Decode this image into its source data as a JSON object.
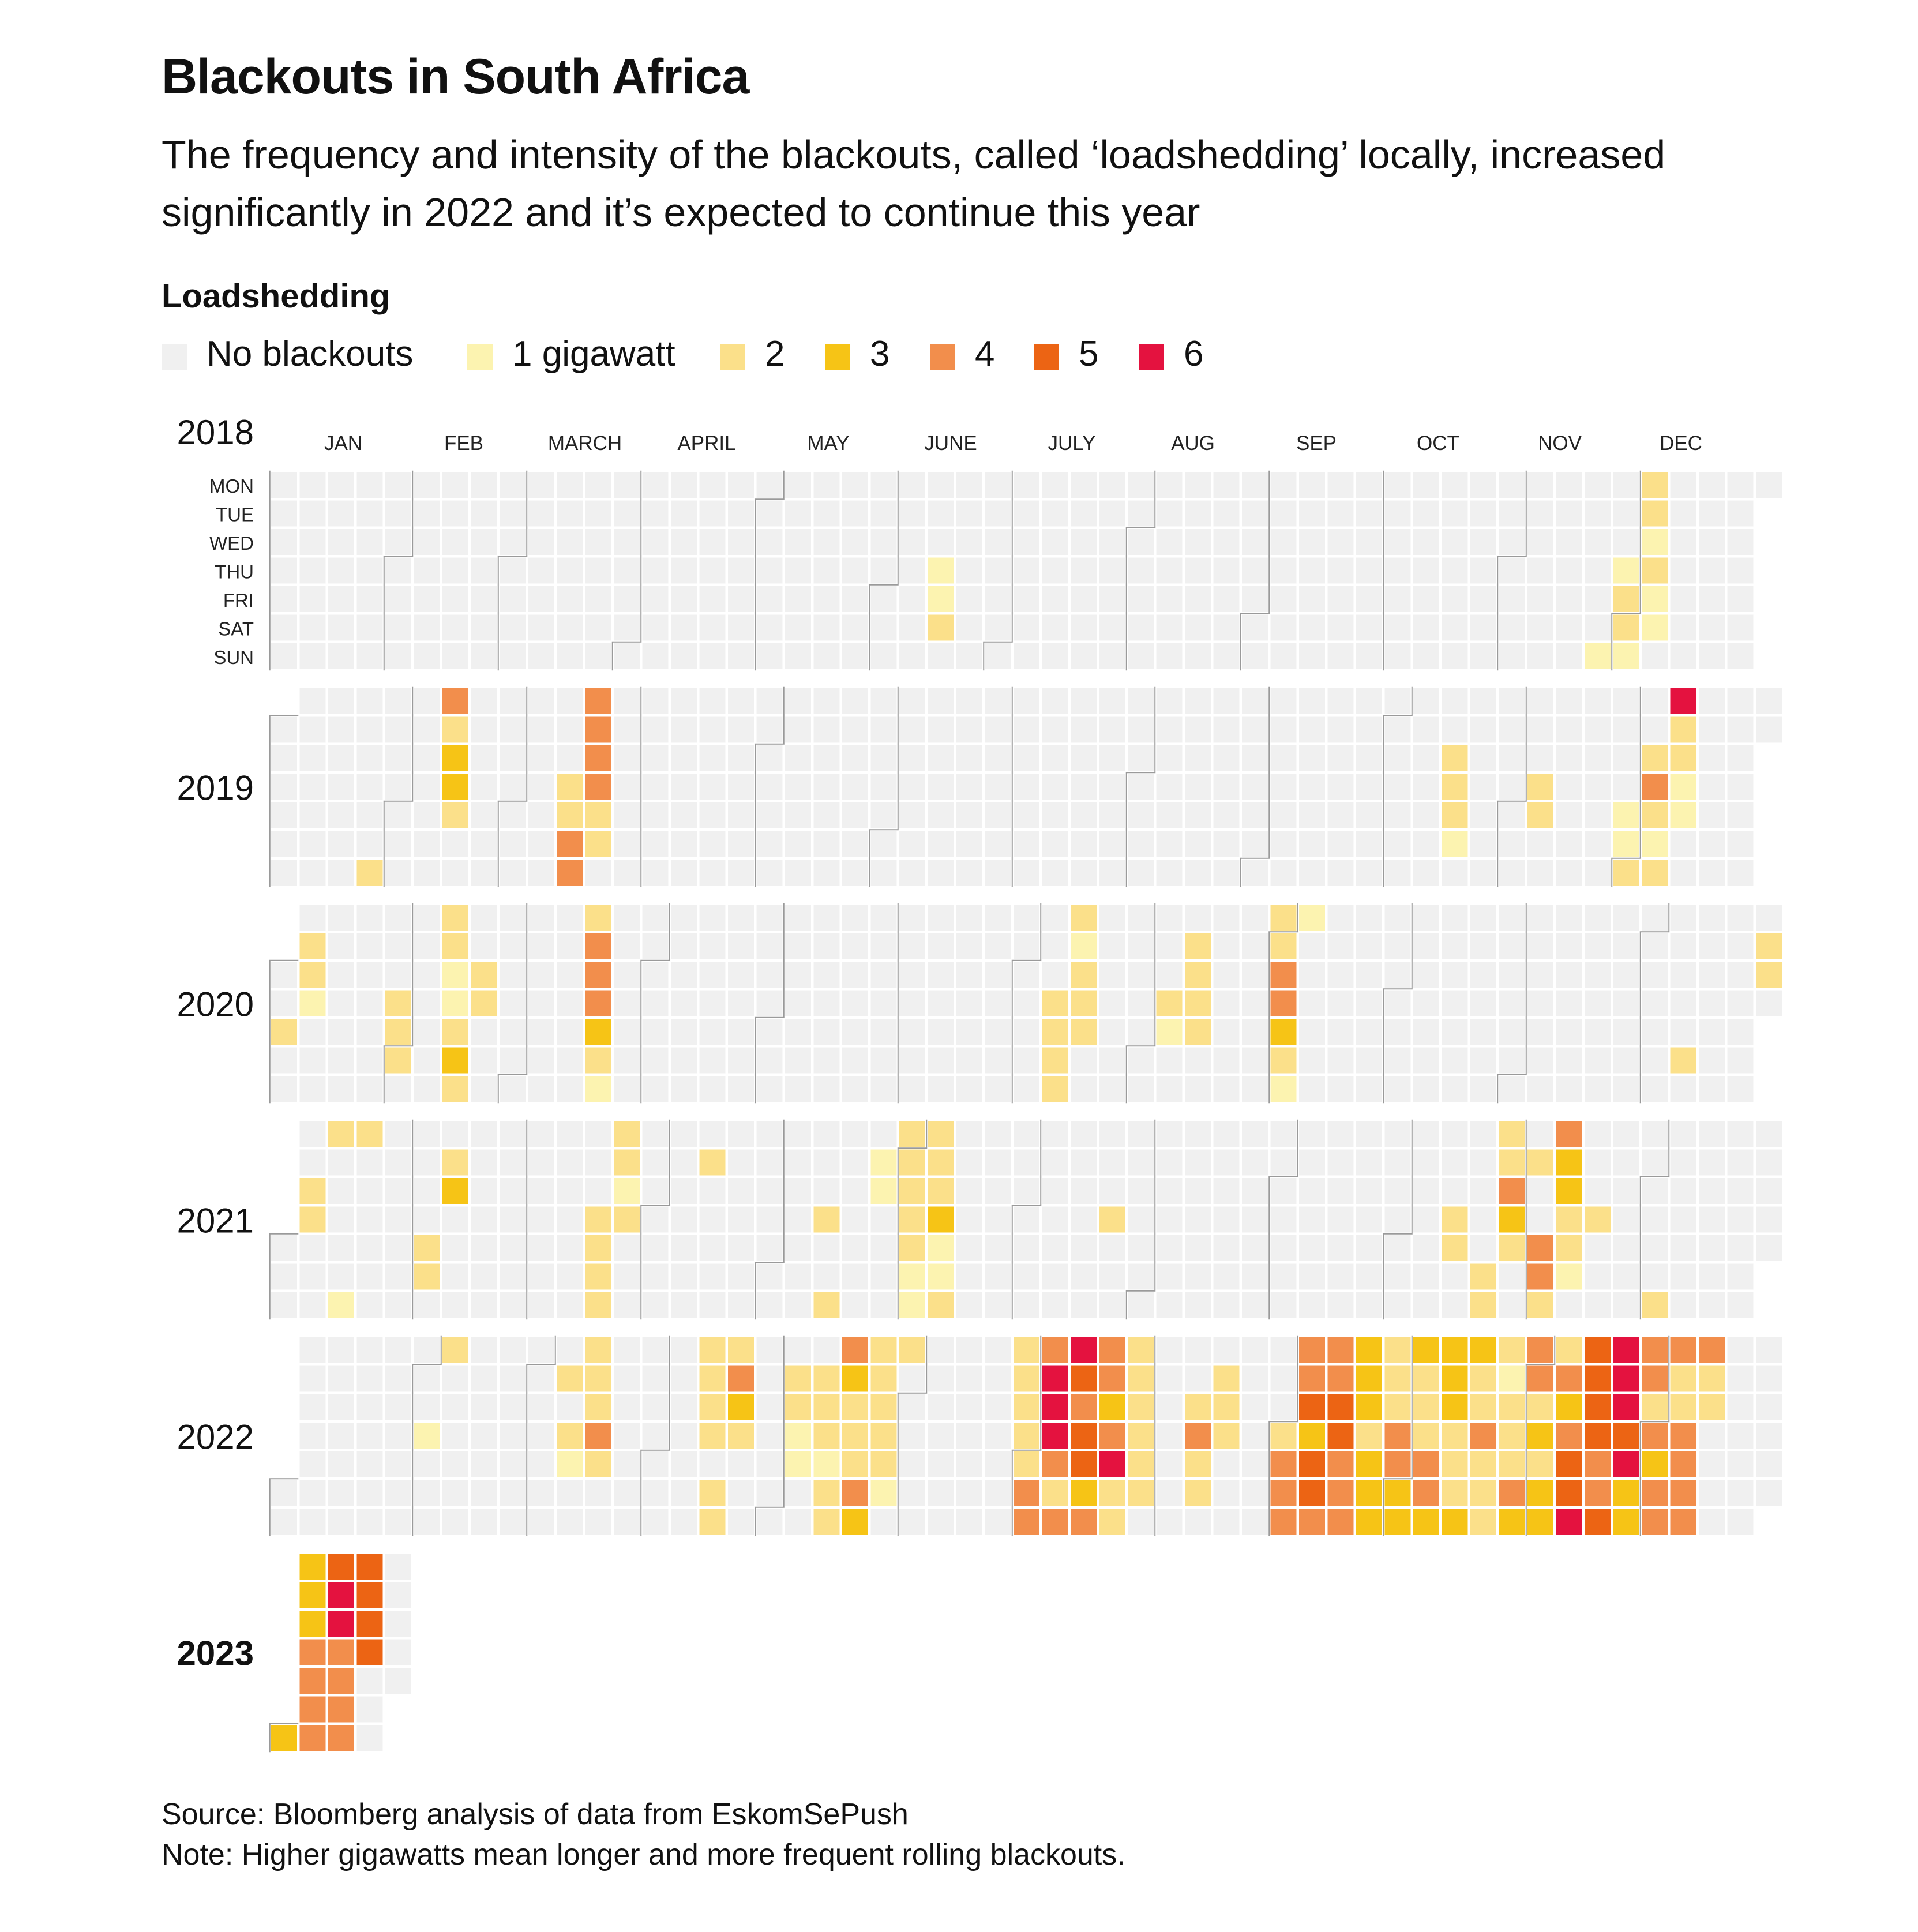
{
  "title": "Blackouts in South Africa",
  "subtitle": "The frequency and intensity of the blackouts, called ‘loadshedding’ locally, increased significantly in 2022 and it’s expected to continue this year",
  "source": "Source: Bloomberg analysis of data from EskomSePush",
  "note": "Note: Higher gigawatts mean longer and more frequent rolling blackouts.",
  "chart_data": {
    "type": "heatmap",
    "legend_title": "Loadshedding",
    "legend": [
      {
        "level": 0,
        "label": "No blackouts"
      },
      {
        "level": 1,
        "label": "1 gigawatt"
      },
      {
        "level": 2,
        "label": "2"
      },
      {
        "level": 3,
        "label": "3"
      },
      {
        "level": 4,
        "label": "4"
      },
      {
        "level": 5,
        "label": "5"
      },
      {
        "level": 6,
        "label": "6"
      }
    ],
    "colors": [
      "#f0f0f0",
      "#fcf3b0",
      "#fbe08a",
      "#f6c416",
      "#f28e4c",
      "#ec6414",
      "#e4123f"
    ],
    "month_labels": [
      "JAN",
      "FEB",
      "MARCH",
      "APRIL",
      "MAY",
      "JUNE",
      "JULY",
      "AUG",
      "SEP",
      "OCT",
      "NOV",
      "DEC"
    ],
    "weekday_labels": [
      "MON",
      "TUE",
      "WED",
      "THU",
      "FRI",
      "SAT",
      "SUN"
    ],
    "years": [
      {
        "year": "2018",
        "highlight": false,
        "days": 365,
        "active": [
          [
            "2018-06-14",
            1
          ],
          [
            "2018-06-15",
            1
          ],
          [
            "2018-06-16",
            2
          ],
          [
            "2018-11-25",
            1
          ],
          [
            "2018-11-29",
            1
          ],
          [
            "2018-11-30",
            2
          ],
          [
            "2018-12-01",
            2
          ],
          [
            "2018-12-02",
            1
          ],
          [
            "2018-12-03",
            2
          ],
          [
            "2018-12-04",
            2
          ],
          [
            "2018-12-05",
            1
          ],
          [
            "2018-12-06",
            2
          ],
          [
            "2018-12-07",
            1
          ],
          [
            "2018-12-08",
            1
          ]
        ]
      },
      {
        "year": "2019",
        "highlight": false,
        "days": 365,
        "active": [
          [
            "2019-01-27",
            2
          ],
          [
            "2019-02-11",
            4
          ],
          [
            "2019-02-12",
            2
          ],
          [
            "2019-02-13",
            3
          ],
          [
            "2019-02-14",
            3
          ],
          [
            "2019-02-15",
            2
          ],
          [
            "2019-03-14",
            2
          ],
          [
            "2019-03-15",
            2
          ],
          [
            "2019-03-16",
            4
          ],
          [
            "2019-03-17",
            4
          ],
          [
            "2019-03-18",
            4
          ],
          [
            "2019-03-19",
            4
          ],
          [
            "2019-03-20",
            4
          ],
          [
            "2019-03-21",
            4
          ],
          [
            "2019-03-22",
            2
          ],
          [
            "2019-03-23",
            2
          ],
          [
            "2019-10-16",
            2
          ],
          [
            "2019-10-17",
            2
          ],
          [
            "2019-10-18",
            2
          ],
          [
            "2019-10-19",
            1
          ],
          [
            "2019-11-07",
            2
          ],
          [
            "2019-11-08",
            2
          ],
          [
            "2019-11-29",
            1
          ],
          [
            "2019-11-30",
            1
          ],
          [
            "2019-12-01",
            2
          ],
          [
            "2019-12-04",
            2
          ],
          [
            "2019-12-05",
            4
          ],
          [
            "2019-12-06",
            2
          ],
          [
            "2019-12-07",
            1
          ],
          [
            "2019-12-08",
            2
          ],
          [
            "2019-12-09",
            6
          ],
          [
            "2019-12-10",
            2
          ],
          [
            "2019-12-11",
            2
          ],
          [
            "2019-12-12",
            1
          ],
          [
            "2019-12-13",
            1
          ]
        ]
      },
      {
        "year": "2020",
        "highlight": false,
        "days": 366,
        "active": [
          [
            "2020-01-03",
            2
          ],
          [
            "2020-01-07",
            2
          ],
          [
            "2020-01-08",
            2
          ],
          [
            "2020-01-09",
            1
          ],
          [
            "2020-01-30",
            2
          ],
          [
            "2020-01-31",
            2
          ],
          [
            "2020-02-01",
            2
          ],
          [
            "2020-02-10",
            2
          ],
          [
            "2020-02-11",
            2
          ],
          [
            "2020-02-12",
            1
          ],
          [
            "2020-02-13",
            1
          ],
          [
            "2020-02-14",
            2
          ],
          [
            "2020-02-15",
            3
          ],
          [
            "2020-02-16",
            2
          ],
          [
            "2020-02-19",
            2
          ],
          [
            "2020-02-20",
            2
          ],
          [
            "2020-03-16",
            2
          ],
          [
            "2020-03-17",
            4
          ],
          [
            "2020-03-18",
            4
          ],
          [
            "2020-03-19",
            4
          ],
          [
            "2020-03-20",
            3
          ],
          [
            "2020-03-21",
            2
          ],
          [
            "2020-03-22",
            1
          ],
          [
            "2020-07-09",
            2
          ],
          [
            "2020-07-10",
            2
          ],
          [
            "2020-07-11",
            2
          ],
          [
            "2020-07-12",
            2
          ],
          [
            "2020-07-13",
            2
          ],
          [
            "2020-07-14",
            1
          ],
          [
            "2020-07-15",
            2
          ],
          [
            "2020-07-16",
            2
          ],
          [
            "2020-07-17",
            2
          ],
          [
            "2020-08-06",
            2
          ],
          [
            "2020-08-07",
            1
          ],
          [
            "2020-08-11",
            2
          ],
          [
            "2020-08-12",
            2
          ],
          [
            "2020-08-13",
            2
          ],
          [
            "2020-08-14",
            2
          ],
          [
            "2020-08-31",
            2
          ],
          [
            "2020-09-01",
            2
          ],
          [
            "2020-09-02",
            4
          ],
          [
            "2020-09-03",
            4
          ],
          [
            "2020-09-04",
            3
          ],
          [
            "2020-09-05",
            2
          ],
          [
            "2020-09-06",
            1
          ],
          [
            "2020-09-07",
            1
          ],
          [
            "2020-12-12",
            2
          ],
          [
            "2020-12-29",
            2
          ],
          [
            "2020-12-30",
            2
          ]
        ]
      },
      {
        "year": "2021",
        "highlight": false,
        "days": 365,
        "active": [
          [
            "2021-01-06",
            2
          ],
          [
            "2021-01-07",
            2
          ],
          [
            "2021-01-11",
            2
          ],
          [
            "2021-01-17",
            1
          ],
          [
            "2021-01-18",
            2
          ],
          [
            "2021-02-05",
            2
          ],
          [
            "2021-02-06",
            2
          ],
          [
            "2021-02-09",
            2
          ],
          [
            "2021-02-10",
            3
          ],
          [
            "2021-03-18",
            2
          ],
          [
            "2021-03-19",
            2
          ],
          [
            "2021-03-20",
            2
          ],
          [
            "2021-03-21",
            2
          ],
          [
            "2021-03-22",
            2
          ],
          [
            "2021-03-23",
            2
          ],
          [
            "2021-03-24",
            1
          ],
          [
            "2021-03-25",
            2
          ],
          [
            "2021-04-13",
            2
          ],
          [
            "2021-05-13",
            2
          ],
          [
            "2021-05-16",
            2
          ],
          [
            "2021-05-25",
            1
          ],
          [
            "2021-05-26",
            1
          ],
          [
            "2021-05-31",
            2
          ],
          [
            "2021-06-01",
            2
          ],
          [
            "2021-06-02",
            2
          ],
          [
            "2021-06-03",
            2
          ],
          [
            "2021-06-04",
            2
          ],
          [
            "2021-06-05",
            1
          ],
          [
            "2021-06-06",
            1
          ],
          [
            "2021-06-07",
            2
          ],
          [
            "2021-06-08",
            2
          ],
          [
            "2021-06-09",
            2
          ],
          [
            "2021-06-10",
            3
          ],
          [
            "2021-06-11",
            1
          ],
          [
            "2021-06-12",
            1
          ],
          [
            "2021-06-13",
            2
          ],
          [
            "2021-07-22",
            2
          ],
          [
            "2021-10-14",
            2
          ],
          [
            "2021-10-15",
            2
          ],
          [
            "2021-10-23",
            2
          ],
          [
            "2021-10-24",
            2
          ],
          [
            "2021-10-25",
            2
          ],
          [
            "2021-10-26",
            2
          ],
          [
            "2021-10-27",
            4
          ],
          [
            "2021-10-28",
            3
          ],
          [
            "2021-10-29",
            2
          ],
          [
            "2021-11-02",
            2
          ],
          [
            "2021-11-05",
            4
          ],
          [
            "2021-11-06",
            4
          ],
          [
            "2021-11-07",
            2
          ],
          [
            "2021-11-08",
            4
          ],
          [
            "2021-11-09",
            3
          ],
          [
            "2021-11-10",
            3
          ],
          [
            "2021-11-11",
            2
          ],
          [
            "2021-11-12",
            2
          ],
          [
            "2021-11-13",
            1
          ],
          [
            "2021-11-18",
            2
          ],
          [
            "2021-12-05",
            2
          ]
        ]
      },
      {
        "year": "2022",
        "highlight": false,
        "days": 365,
        "active": [
          [
            "2022-02-03",
            1
          ],
          [
            "2022-02-07",
            2
          ],
          [
            "2022-03-08",
            2
          ],
          [
            "2022-03-10",
            2
          ],
          [
            "2022-03-11",
            1
          ],
          [
            "2022-03-14",
            2
          ],
          [
            "2022-03-15",
            2
          ],
          [
            "2022-03-16",
            2
          ],
          [
            "2022-03-17",
            4
          ],
          [
            "2022-03-18",
            2
          ],
          [
            "2022-04-11",
            2
          ],
          [
            "2022-04-12",
            2
          ],
          [
            "2022-04-13",
            2
          ],
          [
            "2022-04-14",
            2
          ],
          [
            "2022-04-16",
            2
          ],
          [
            "2022-04-17",
            2
          ],
          [
            "2022-04-18",
            2
          ],
          [
            "2022-04-19",
            4
          ],
          [
            "2022-04-20",
            3
          ],
          [
            "2022-04-21",
            2
          ],
          [
            "2022-05-03",
            2
          ],
          [
            "2022-05-04",
            2
          ],
          [
            "2022-05-05",
            1
          ],
          [
            "2022-05-06",
            1
          ],
          [
            "2022-05-10",
            2
          ],
          [
            "2022-05-11",
            2
          ],
          [
            "2022-05-12",
            2
          ],
          [
            "2022-05-13",
            1
          ],
          [
            "2022-05-14",
            2
          ],
          [
            "2022-05-15",
            2
          ],
          [
            "2022-05-16",
            4
          ],
          [
            "2022-05-17",
            3
          ],
          [
            "2022-05-18",
            2
          ],
          [
            "2022-05-19",
            2
          ],
          [
            "2022-05-20",
            2
          ],
          [
            "2022-05-21",
            4
          ],
          [
            "2022-05-22",
            3
          ],
          [
            "2022-05-23",
            2
          ],
          [
            "2022-05-24",
            2
          ],
          [
            "2022-05-25",
            2
          ],
          [
            "2022-05-26",
            2
          ],
          [
            "2022-05-27",
            2
          ],
          [
            "2022-05-28",
            1
          ],
          [
            "2022-05-30",
            2
          ],
          [
            "2022-06-27",
            2
          ],
          [
            "2022-06-28",
            2
          ],
          [
            "2022-06-29",
            2
          ],
          [
            "2022-06-30",
            2
          ],
          [
            "2022-07-01",
            2
          ],
          [
            "2022-07-02",
            4
          ],
          [
            "2022-07-03",
            4
          ],
          [
            "2022-07-04",
            4
          ],
          [
            "2022-07-05",
            6
          ],
          [
            "2022-07-06",
            6
          ],
          [
            "2022-07-07",
            6
          ],
          [
            "2022-07-08",
            4
          ],
          [
            "2022-07-09",
            2
          ],
          [
            "2022-07-10",
            4
          ],
          [
            "2022-07-11",
            6
          ],
          [
            "2022-07-12",
            5
          ],
          [
            "2022-07-13",
            4
          ],
          [
            "2022-07-14",
            5
          ],
          [
            "2022-07-15",
            5
          ],
          [
            "2022-07-16",
            3
          ],
          [
            "2022-07-17",
            4
          ],
          [
            "2022-07-18",
            4
          ],
          [
            "2022-07-19",
            4
          ],
          [
            "2022-07-20",
            3
          ],
          [
            "2022-07-21",
            4
          ],
          [
            "2022-07-22",
            6
          ],
          [
            "2022-07-23",
            2
          ],
          [
            "2022-07-24",
            2
          ],
          [
            "2022-07-25",
            2
          ],
          [
            "2022-07-26",
            2
          ],
          [
            "2022-07-27",
            2
          ],
          [
            "2022-07-28",
            2
          ],
          [
            "2022-07-29",
            2
          ],
          [
            "2022-07-30",
            2
          ],
          [
            "2022-08-10",
            2
          ],
          [
            "2022-08-11",
            4
          ],
          [
            "2022-08-12",
            2
          ],
          [
            "2022-08-13",
            2
          ],
          [
            "2022-08-16",
            2
          ],
          [
            "2022-08-17",
            2
          ],
          [
            "2022-08-18",
            2
          ]
        ]
      },
      {
        "year": "2023",
        "highlight": true,
        "days": 27,
        "active": [
          [
            "2023-01-01",
            3
          ],
          [
            "2023-01-02",
            3
          ],
          [
            "2023-01-03",
            3
          ],
          [
            "2023-01-04",
            3
          ],
          [
            "2023-01-05",
            4
          ],
          [
            "2023-01-06",
            4
          ],
          [
            "2023-01-07",
            4
          ],
          [
            "2023-01-08",
            4
          ],
          [
            "2023-01-09",
            5
          ],
          [
            "2023-01-10",
            6
          ],
          [
            "2023-01-11",
            6
          ],
          [
            "2023-01-12",
            4
          ],
          [
            "2023-01-13",
            4
          ],
          [
            "2023-01-14",
            4
          ],
          [
            "2023-01-15",
            4
          ],
          [
            "2023-01-16",
            5
          ],
          [
            "2023-01-17",
            5
          ],
          [
            "2023-01-18",
            5
          ],
          [
            "2023-01-19",
            5
          ]
        ]
      }
    ],
    "late_2022_levels": [
      2,
      4,
      4,
      4,
      4,
      4,
      5,
      3,
      5,
      5,
      4,
      4,
      4,
      5,
      5,
      4,
      4,
      4,
      3,
      3,
      3,
      2,
      3,
      3,
      3,
      2,
      2,
      2,
      4,
      4,
      3,
      3,
      3,
      2,
      2,
      2,
      4,
      4,
      3,
      3,
      3,
      3,
      2,
      2,
      2,
      3,
      3,
      2,
      2,
      4,
      2,
      2,
      2,
      2,
      1,
      2,
      2,
      2,
      4,
      3,
      4,
      4,
      2,
      3,
      2,
      3,
      3,
      2,
      4,
      3,
      4,
      5,
      5,
      6,
      5,
      5,
      5,
      5,
      4,
      4,
      5,
      6,
      6,
      6,
      5,
      6,
      3,
      3,
      4,
      4,
      2,
      4,
      3,
      4,
      4,
      4,
      2,
      2,
      4,
      4,
      4,
      4,
      4,
      2,
      2
    ]
  }
}
